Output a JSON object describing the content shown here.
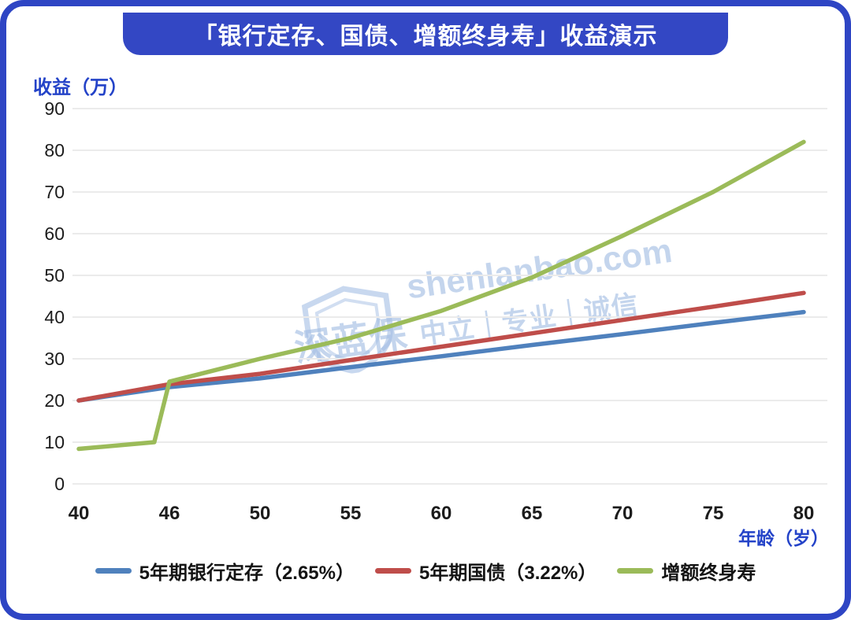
{
  "title": "「银行定存、国债、增额终身寿」收益演示",
  "watermark": {
    "brand": "深蓝保",
    "domain": "shenlanbao.com",
    "slogan": "中立｜专业｜诚信"
  },
  "colors": {
    "frame_blue": "#2e45c4",
    "banner_blue": "#3347c4",
    "axis_text_blue": "#2443c8",
    "tick_text": "#1c1c1c",
    "grid": "#ebebeb",
    "watermark_blue": "#a4bee4"
  },
  "chart_data": {
    "type": "line",
    "title": "「银行定存、国债、增额终身寿」收益演示",
    "xlabel": "年龄（岁）",
    "ylabel": "收益（万）",
    "x_ticks": [
      40,
      46,
      50,
      55,
      60,
      65,
      70,
      75,
      80
    ],
    "y_ticks": [
      0,
      10,
      20,
      30,
      40,
      50,
      60,
      70,
      80,
      90
    ],
    "ylim": [
      0,
      90
    ],
    "grid": "horizontal",
    "legend_position": "bottom",
    "series": [
      {
        "name": "5年期银行定存（2.65%）",
        "color": "#4f81bd",
        "points": [
          [
            40,
            20
          ],
          [
            46,
            23.2
          ],
          [
            50,
            25.3
          ],
          [
            55,
            28.0
          ],
          [
            60,
            30.6
          ],
          [
            65,
            33.3
          ],
          [
            70,
            35.9
          ],
          [
            75,
            38.6
          ],
          [
            80,
            41.2
          ]
        ]
      },
      {
        "name": "5年期国债（3.22%）",
        "color": "#bf4d4a",
        "points": [
          [
            40,
            20
          ],
          [
            46,
            23.9
          ],
          [
            50,
            26.4
          ],
          [
            55,
            29.7
          ],
          [
            60,
            32.9
          ],
          [
            65,
            36.1
          ],
          [
            70,
            39.3
          ],
          [
            75,
            42.5
          ],
          [
            80,
            45.8
          ]
        ]
      },
      {
        "name": "增额终身寿",
        "color": "#9bbb59",
        "points": [
          [
            40,
            8.4
          ],
          [
            45,
            10
          ],
          [
            46,
            24.5
          ],
          [
            50,
            30
          ],
          [
            55,
            35
          ],
          [
            60,
            41.5
          ],
          [
            65,
            49.5
          ],
          [
            70,
            59.5
          ],
          [
            75,
            70
          ],
          [
            80,
            82
          ]
        ]
      }
    ]
  }
}
